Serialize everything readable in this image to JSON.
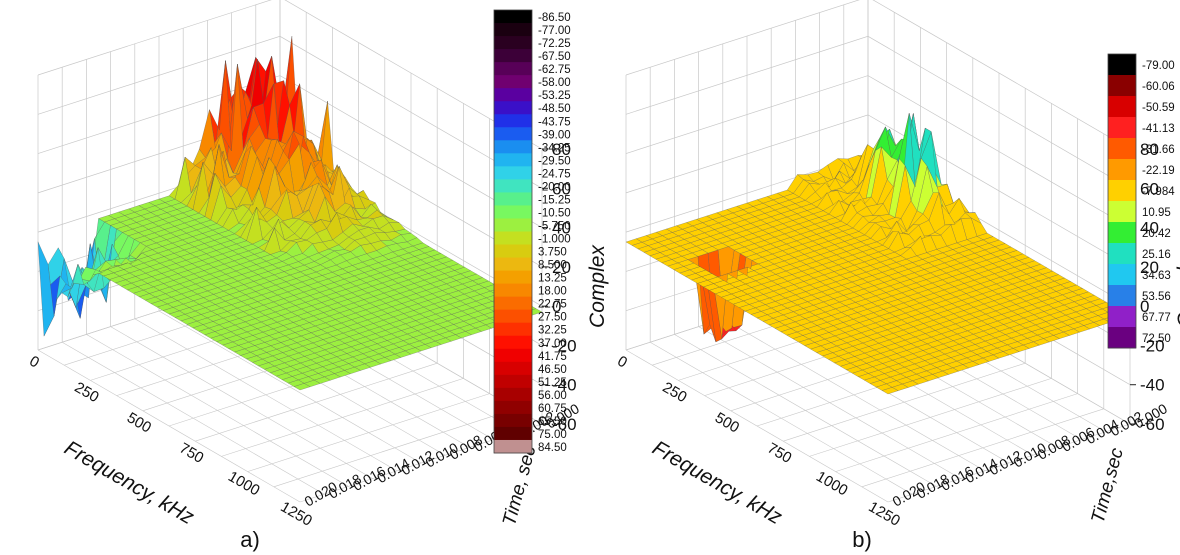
{
  "chart_data": [
    {
      "type": "surface",
      "panel_label": "a)",
      "xlabel": "Frequency, kHz",
      "ylabel": "Time, sec",
      "zlabel": "Complex",
      "x_ticks": [
        "0",
        "250",
        "500",
        "750",
        "1000",
        "1250"
      ],
      "y_ticks": [
        "0.000",
        "0.002",
        "0.004",
        "0.006",
        "0.008",
        "0.010",
        "0.012",
        "0.014",
        "0.016",
        "0.018",
        "0.020"
      ],
      "z_ticks": [
        "-60",
        "-40",
        "-20",
        "0",
        "20",
        "40",
        "60",
        "80"
      ],
      "xlim": [
        0,
        1250
      ],
      "ylim": [
        0,
        0.02
      ],
      "zlim": [
        -60,
        80
      ],
      "colorbar": {
        "levels": [
          "-86.50",
          "-77.00",
          "-72.25",
          "-67.50",
          "-62.75",
          "-58.00",
          "-53.25",
          "-48.50",
          "-43.75",
          "-39.00",
          "-34.25",
          "-29.50",
          "-24.75",
          "-20.00",
          "-15.25",
          "-10.50",
          "-5.750",
          "-1.000",
          "3.750",
          "8.500",
          "13.25",
          "18.00",
          "22.75",
          "27.50",
          "32.25",
          "37.00",
          "41.75",
          "46.50",
          "51.25",
          "56.00",
          "60.75",
          "65.50",
          "75.00",
          "84.50"
        ],
        "colors": [
          "#000000",
          "#1a0010",
          "#2a0020",
          "#3c0038",
          "#580058",
          "#700070",
          "#5a00a0",
          "#3a10c8",
          "#2030e8",
          "#1a5cf0",
          "#1a8ef0",
          "#20b4f0",
          "#30d2e8",
          "#40e4c0",
          "#58f08c",
          "#78f860",
          "#9cf040",
          "#c4e020",
          "#d8cc10",
          "#ecb810",
          "#f4a000",
          "#f88800",
          "#fa6c00",
          "#fc5000",
          "#fe3000",
          "#ff1000",
          "#f00000",
          "#d80000",
          "#c00000",
          "#a80000",
          "#900000",
          "#780000",
          "#600000",
          "#c09090"
        ]
      },
      "surface_levels": {
        "baseline": -5,
        "near_ridge_max": 75,
        "low_freq_dip_min": -60,
        "far_field": -3
      }
    },
    {
      "type": "surface",
      "panel_label": "b)",
      "xlabel": "Frequency, kHz",
      "ylabel": "Time,sec",
      "zlabel": "Complex",
      "x_ticks": [
        "0",
        "250",
        "500",
        "750",
        "1000",
        "1250"
      ],
      "y_ticks": [
        "0.000",
        "0.002",
        "0.004",
        "0.006",
        "0.008",
        "0.010",
        "0.012",
        "0.014",
        "0.016",
        "0.018",
        "0.020"
      ],
      "z_ticks": [
        "-60",
        "-40",
        "-20",
        "0",
        "20",
        "40",
        "60",
        "80"
      ],
      "xlim": [
        0,
        1250
      ],
      "ylim": [
        0,
        0.02
      ],
      "zlim": [
        -60,
        80
      ],
      "colorbar": {
        "levels": [
          "-79.00",
          "-60.06",
          "-50.59",
          "-41.13",
          "-31.66",
          "-22.19",
          "-7.984",
          "10.95",
          "20.42",
          "25.16",
          "34.63",
          "53.56",
          "67.77",
          "72.50"
        ],
        "colors": [
          "#000000",
          "#8a0000",
          "#d80000",
          "#ff2020",
          "#ff5a00",
          "#ff9a00",
          "#ffd000",
          "#ccff33",
          "#33ee33",
          "#20e0c0",
          "#20c8f0",
          "#2880e8",
          "#9020c8",
          "#6a0080"
        ]
      },
      "surface_levels": {
        "baseline": -5,
        "peak_max": 75,
        "dip_min": -45
      }
    }
  ]
}
